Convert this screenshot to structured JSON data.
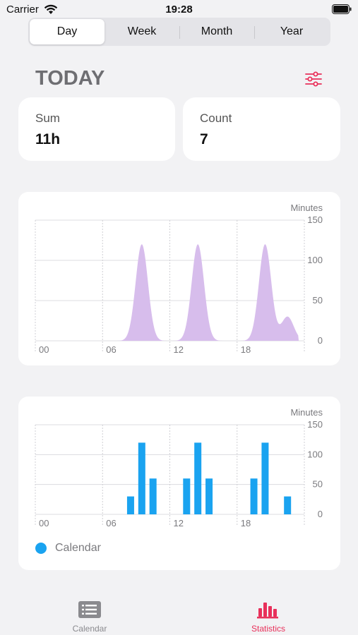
{
  "status_bar": {
    "carrier": "Carrier",
    "time": "19:28"
  },
  "segments": {
    "items": [
      "Day",
      "Week",
      "Month",
      "Year"
    ],
    "selected": "Day"
  },
  "section": {
    "title": "TODAY",
    "filter_icon": "sliders-icon",
    "accent_color": "#e8305a"
  },
  "stats": {
    "sum_label": "Sum",
    "sum_value": "11h",
    "count_label": "Count",
    "count_value": "7"
  },
  "chart_data": [
    {
      "type": "area",
      "ylabel": "Minutes",
      "ylim": [
        0,
        150
      ],
      "yticks": [
        "150",
        "100",
        "50",
        "0"
      ],
      "xticks": [
        "00",
        "06",
        "12",
        "18"
      ],
      "x_range": [
        0,
        24
      ],
      "grid": true,
      "color": "#d7bdec",
      "peaks": [
        {
          "x": 9.5,
          "y": 120
        },
        {
          "x": 14.5,
          "y": 120
        },
        {
          "x": 20.5,
          "y": 120
        },
        {
          "x": 22.5,
          "y": 30
        }
      ]
    },
    {
      "type": "bar",
      "ylabel": "Minutes",
      "ylim": [
        0,
        150
      ],
      "yticks": [
        "150",
        "100",
        "50",
        "0"
      ],
      "xticks": [
        "00",
        "06",
        "12",
        "18"
      ],
      "x_range": [
        0,
        24
      ],
      "grid": true,
      "color": "#1aa3f0",
      "x": [
        8.5,
        9.5,
        10.5,
        13.5,
        14.5,
        15.5,
        19.5,
        20.5,
        22.5
      ],
      "values": [
        30,
        120,
        60,
        60,
        120,
        60,
        60,
        120,
        30
      ],
      "legend": [
        {
          "name": "Calendar",
          "color": "#1aa3f0"
        }
      ]
    }
  ],
  "tabs": [
    {
      "label": "Calendar",
      "icon": "list-icon",
      "active": false,
      "color": "#8a8a8e"
    },
    {
      "label": "Statistics",
      "icon": "bar-chart-icon",
      "active": true,
      "color": "#e8305a"
    }
  ]
}
